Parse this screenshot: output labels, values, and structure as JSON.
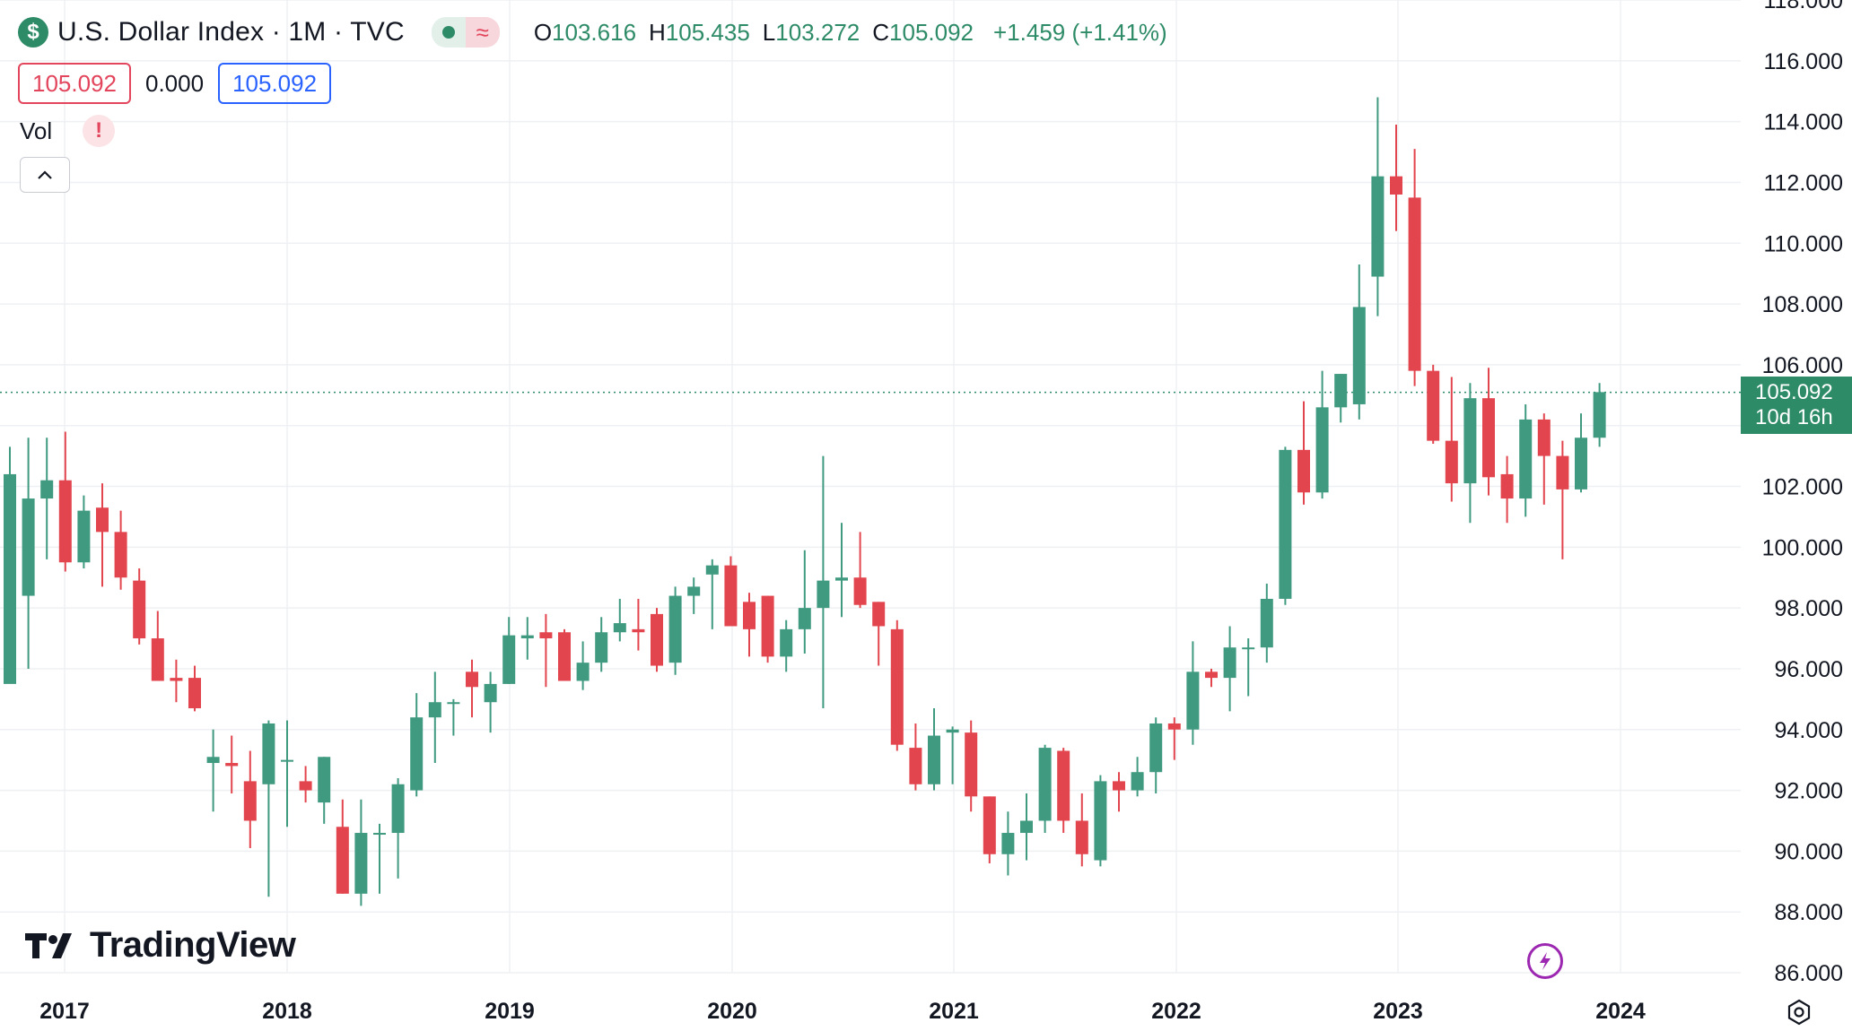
{
  "header": {
    "symbol_glyph": "$",
    "title": "U.S. Dollar Index · 1M · TVC",
    "open_key": "O",
    "open": "103.616",
    "high_key": "H",
    "high": "105.435",
    "low_key": "L",
    "low": "103.272",
    "close_key": "C",
    "close": "105.092",
    "change": "+1.459 (+1.41%)"
  },
  "prices": {
    "bid": "105.092",
    "spread": "0.000",
    "ask": "105.092"
  },
  "volume": {
    "label": "Vol",
    "warning_glyph": "!"
  },
  "last_price_tag": {
    "price": "105.092",
    "countdown": "10d 16h"
  },
  "branding": {
    "logo_text": "TradingView"
  },
  "colors": {
    "up": "#3f9a80",
    "down": "#e2454e",
    "accent": "#2e8b68",
    "grid": "#eef0f3"
  },
  "chart_data": {
    "type": "candlestick",
    "title": "U.S. Dollar Index · 1M · TVC",
    "interval": "1M",
    "ylim": [
      86,
      118
    ],
    "y_ticks": [
      "86.000",
      "88.000",
      "90.000",
      "92.000",
      "94.000",
      "96.000",
      "98.000",
      "100.000",
      "102.000",
      "104.000",
      "106.000",
      "108.000",
      "110.000",
      "112.000",
      "114.000",
      "116.000",
      "118.000"
    ],
    "x_ticks": [
      "2017",
      "2018",
      "2019",
      "2020",
      "2021",
      "2022",
      "2023",
      "2024"
    ],
    "last_price": 105.092,
    "candles": [
      {
        "d": "2016-12",
        "o": 95.5,
        "h": 103.3,
        "l": 95.8,
        "c": 102.4
      },
      {
        "d": "2017-01",
        "o": 98.4,
        "h": 103.6,
        "l": 96.0,
        "c": 101.6
      },
      {
        "d": "2017-02",
        "o": 101.6,
        "h": 103.6,
        "l": 99.6,
        "c": 102.2
      },
      {
        "d": "2017-03",
        "o": 102.2,
        "h": 103.8,
        "l": 99.2,
        "c": 99.5
      },
      {
        "d": "2017-04",
        "o": 99.5,
        "h": 101.7,
        "l": 99.3,
        "c": 101.2
      },
      {
        "d": "2017-05",
        "o": 101.3,
        "h": 102.1,
        "l": 98.7,
        "c": 100.5
      },
      {
        "d": "2017-06",
        "o": 100.5,
        "h": 101.2,
        "l": 98.6,
        "c": 99.0
      },
      {
        "d": "2017-07",
        "o": 98.9,
        "h": 99.3,
        "l": 96.8,
        "c": 97.0
      },
      {
        "d": "2017-08",
        "o": 97.0,
        "h": 97.9,
        "l": 95.6,
        "c": 95.6
      },
      {
        "d": "2017-09",
        "o": 95.7,
        "h": 96.3,
        "l": 94.9,
        "c": 95.6
      },
      {
        "d": "2017-10",
        "o": 95.7,
        "h": 96.1,
        "l": 94.6,
        "c": 94.7
      },
      {
        "d": "2017-11",
        "o": 92.9,
        "h": 94.0,
        "l": 91.3,
        "c": 93.1
      },
      {
        "d": "2017-12",
        "o": 92.9,
        "h": 93.8,
        "l": 91.9,
        "c": 92.8
      },
      {
        "d": "2018-01",
        "o": 92.3,
        "h": 93.3,
        "l": 90.1,
        "c": 91.0
      },
      {
        "d": "2018-02",
        "o": 92.2,
        "h": 94.3,
        "l": 88.5,
        "c": 94.2
      },
      {
        "d": "2018-03",
        "o": 93.0,
        "h": 94.3,
        "l": 90.8,
        "c": 93.0
      },
      {
        "d": "2018-04",
        "o": 92.3,
        "h": 92.8,
        "l": 91.6,
        "c": 92.0
      },
      {
        "d": "2018-05",
        "o": 91.6,
        "h": 93.1,
        "l": 90.9,
        "c": 93.1
      },
      {
        "d": "2018-06",
        "o": 90.8,
        "h": 91.7,
        "l": 88.6,
        "c": 88.6
      },
      {
        "d": "2018-07",
        "o": 88.6,
        "h": 91.7,
        "l": 88.2,
        "c": 90.6
      },
      {
        "d": "2018-08",
        "o": 90.6,
        "h": 90.9,
        "l": 88.6,
        "c": 90.6
      },
      {
        "d": "2018-09",
        "o": 90.6,
        "h": 92.4,
        "l": 89.1,
        "c": 92.2
      },
      {
        "d": "2018-10",
        "o": 92.0,
        "h": 95.2,
        "l": 91.8,
        "c": 94.4
      },
      {
        "d": "2018-11",
        "o": 94.4,
        "h": 95.9,
        "l": 92.9,
        "c": 94.9
      },
      {
        "d": "2018-12",
        "o": 94.9,
        "h": 95.0,
        "l": 93.8,
        "c": 94.9
      },
      {
        "d": "2019-01",
        "o": 95.9,
        "h": 96.3,
        "l": 94.4,
        "c": 95.4
      },
      {
        "d": "2019-02",
        "o": 94.9,
        "h": 95.9,
        "l": 93.9,
        "c": 95.5
      },
      {
        "d": "2019-03",
        "o": 95.5,
        "h": 97.7,
        "l": 95.5,
        "c": 97.1
      },
      {
        "d": "2019-04",
        "o": 97.0,
        "h": 97.7,
        "l": 96.3,
        "c": 97.1
      },
      {
        "d": "2019-05",
        "o": 97.2,
        "h": 97.8,
        "l": 95.4,
        "c": 97.0
      },
      {
        "d": "2019-06",
        "o": 97.2,
        "h": 97.3,
        "l": 95.6,
        "c": 95.6
      },
      {
        "d": "2019-07",
        "o": 95.6,
        "h": 96.9,
        "l": 95.3,
        "c": 96.2
      },
      {
        "d": "2019-08",
        "o": 96.2,
        "h": 97.7,
        "l": 95.9,
        "c": 97.2
      },
      {
        "d": "2019-09",
        "o": 97.2,
        "h": 98.3,
        "l": 96.9,
        "c": 97.5
      },
      {
        "d": "2019-10",
        "o": 97.3,
        "h": 98.3,
        "l": 96.6,
        "c": 97.2
      },
      {
        "d": "2019-11",
        "o": 97.8,
        "h": 98.0,
        "l": 95.9,
        "c": 96.1
      },
      {
        "d": "2019-12",
        "o": 96.2,
        "h": 98.7,
        "l": 95.8,
        "c": 98.4
      },
      {
        "d": "2020-01",
        "o": 98.4,
        "h": 99.0,
        "l": 97.8,
        "c": 98.7
      },
      {
        "d": "2020-02",
        "o": 99.1,
        "h": 99.6,
        "l": 97.3,
        "c": 99.4
      },
      {
        "d": "2020-03",
        "o": 99.4,
        "h": 99.7,
        "l": 97.5,
        "c": 97.4
      },
      {
        "d": "2020-04",
        "o": 98.2,
        "h": 98.5,
        "l": 96.4,
        "c": 97.3
      },
      {
        "d": "2020-05",
        "o": 98.4,
        "h": 98.4,
        "l": 96.2,
        "c": 96.4
      },
      {
        "d": "2020-06",
        "o": 96.4,
        "h": 97.6,
        "l": 95.9,
        "c": 97.3
      },
      {
        "d": "2020-07",
        "o": 97.3,
        "h": 99.9,
        "l": 96.5,
        "c": 98.0
      },
      {
        "d": "2020-08",
        "o": 98.0,
        "h": 103.0,
        "l": 94.7,
        "c": 98.9
      },
      {
        "d": "2020-09",
        "o": 98.9,
        "h": 100.8,
        "l": 97.7,
        "c": 99.0
      },
      {
        "d": "2020-10",
        "o": 99.0,
        "h": 100.5,
        "l": 98.0,
        "c": 98.1
      },
      {
        "d": "2020-11",
        "o": 98.2,
        "h": 98.2,
        "l": 96.1,
        "c": 97.4
      },
      {
        "d": "2020-12",
        "o": 97.3,
        "h": 97.6,
        "l": 93.3,
        "c": 93.5
      },
      {
        "d": "2021-01",
        "o": 93.4,
        "h": 94.2,
        "l": 92.0,
        "c": 92.2
      },
      {
        "d": "2021-02",
        "o": 92.2,
        "h": 94.7,
        "l": 92.0,
        "c": 93.8
      },
      {
        "d": "2021-03",
        "o": 93.9,
        "h": 94.1,
        "l": 92.2,
        "c": 94.0
      },
      {
        "d": "2021-04",
        "o": 93.9,
        "h": 94.3,
        "l": 91.3,
        "c": 91.8
      },
      {
        "d": "2021-05",
        "o": 91.8,
        "h": 91.8,
        "l": 89.6,
        "c": 89.9
      },
      {
        "d": "2021-06",
        "o": 89.9,
        "h": 91.3,
        "l": 89.2,
        "c": 90.6
      },
      {
        "d": "2021-07",
        "o": 90.6,
        "h": 91.9,
        "l": 89.7,
        "c": 91.0
      },
      {
        "d": "2021-08",
        "o": 91.0,
        "h": 93.5,
        "l": 90.6,
        "c": 93.4
      },
      {
        "d": "2021-09",
        "o": 93.3,
        "h": 93.4,
        "l": 90.6,
        "c": 91.0
      },
      {
        "d": "2021-10",
        "o": 91.0,
        "h": 91.9,
        "l": 89.5,
        "c": 89.9
      },
      {
        "d": "2021-11",
        "o": 89.7,
        "h": 92.5,
        "l": 89.5,
        "c": 92.3
      },
      {
        "d": "2021-12",
        "o": 92.3,
        "h": 92.6,
        "l": 91.3,
        "c": 92.0
      },
      {
        "d": "2022-01",
        "o": 92.0,
        "h": 93.1,
        "l": 91.8,
        "c": 92.6
      },
      {
        "d": "2022-02",
        "o": 92.6,
        "h": 94.4,
        "l": 91.9,
        "c": 94.2
      },
      {
        "d": "2022-03",
        "o": 94.2,
        "h": 94.4,
        "l": 93.0,
        "c": 94.0
      },
      {
        "d": "2022-04",
        "o": 94.0,
        "h": 96.9,
        "l": 93.5,
        "c": 95.9
      },
      {
        "d": "2022-05",
        "o": 95.9,
        "h": 96.0,
        "l": 95.4,
        "c": 95.7
      },
      {
        "d": "2022-06",
        "o": 95.7,
        "h": 97.4,
        "l": 94.6,
        "c": 96.7
      },
      {
        "d": "2022-07",
        "o": 96.7,
        "h": 97.0,
        "l": 95.1,
        "c": 96.7
      },
      {
        "d": "2022-08",
        "o": 96.7,
        "h": 98.8,
        "l": 96.2,
        "c": 98.3
      },
      {
        "d": "2022-09",
        "o": 98.3,
        "h": 103.3,
        "l": 98.1,
        "c": 103.2
      },
      {
        "d": "2022-10",
        "o": 103.2,
        "h": 104.8,
        "l": 101.4,
        "c": 101.8
      },
      {
        "d": "2022-11",
        "o": 101.8,
        "h": 105.8,
        "l": 101.6,
        "c": 104.6
      },
      {
        "d": "2022-12",
        "o": 104.6,
        "h": 105.7,
        "l": 104.1,
        "c": 105.7
      },
      {
        "d": "2023-01",
        "o": 104.7,
        "h": 109.3,
        "l": 104.2,
        "c": 107.9
      },
      {
        "d": "2023-02",
        "o": 108.9,
        "h": 114.8,
        "l": 107.6,
        "c": 112.2
      },
      {
        "d": "2023-03",
        "o": 112.2,
        "h": 113.9,
        "l": 110.4,
        "c": 111.6
      },
      {
        "d": "2023-04",
        "o": 111.5,
        "h": 113.1,
        "l": 105.3,
        "c": 105.8
      },
      {
        "d": "2023-05",
        "o": 105.8,
        "h": 106.0,
        "l": 103.4,
        "c": 103.5
      },
      {
        "d": "2023-06",
        "o": 103.5,
        "h": 105.6,
        "l": 101.5,
        "c": 102.1
      },
      {
        "d": "2023-07",
        "o": 102.1,
        "h": 105.4,
        "l": 100.8,
        "c": 104.9
      },
      {
        "d": "2023-08",
        "o": 104.9,
        "h": 105.9,
        "l": 101.7,
        "c": 102.3
      },
      {
        "d": "2023-09",
        "o": 102.4,
        "h": 103.0,
        "l": 100.8,
        "c": 101.6
      },
      {
        "d": "2023-10",
        "o": 101.6,
        "h": 104.7,
        "l": 101.0,
        "c": 104.2
      },
      {
        "d": "2023-11",
        "o": 104.2,
        "h": 104.4,
        "l": 101.4,
        "c": 103.0
      },
      {
        "d": "2023-12",
        "o": 103.0,
        "h": 103.5,
        "l": 99.6,
        "c": 101.9
      },
      {
        "d": "2024-01",
        "o": 101.9,
        "h": 104.4,
        "l": 101.8,
        "c": 103.6
      },
      {
        "d": "2024-02",
        "o": 103.6,
        "h": 105.4,
        "l": 103.3,
        "c": 105.1
      }
    ]
  }
}
